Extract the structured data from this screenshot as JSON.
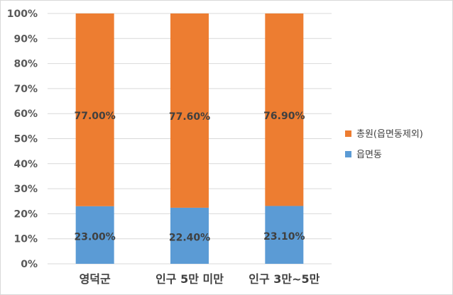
{
  "chart_data": {
    "type": "bar",
    "stacked": true,
    "categories": [
      "영덕군",
      "인구 5만 미만",
      "인구 3만~5만"
    ],
    "series": [
      {
        "name": "읍면동",
        "values": [
          23.0,
          22.4,
          23.1
        ],
        "labels": [
          "23.00%",
          "22.40%",
          "23.10%"
        ],
        "color": "#5B9BD5"
      },
      {
        "name": "총원(읍면동제외)",
        "values": [
          77.0,
          77.6,
          76.9
        ],
        "labels": [
          "77.00%",
          "77.60%",
          "76.90%"
        ],
        "color": "#ED7D31"
      }
    ],
    "yticks": [
      "0%",
      "10%",
      "20%",
      "30%",
      "40%",
      "50%",
      "60%",
      "70%",
      "80%",
      "90%",
      "100%"
    ],
    "ylim": [
      0,
      100
    ],
    "grid": true,
    "legend_position": "right"
  }
}
